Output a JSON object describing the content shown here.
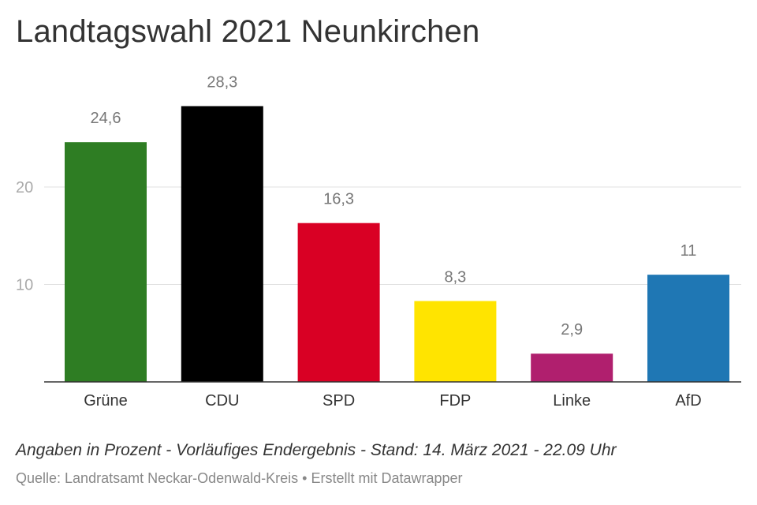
{
  "title": "Landtagswahl 2021 Neunkirchen",
  "note": "Angaben in Prozent - Vorläufiges Endergebnis - Stand: 14. März 2021 - 22.09 Uhr",
  "source": "Quelle: Landratsamt Neckar-Odenwald-Kreis • Erstellt mit Datawrapper",
  "chart_data": {
    "type": "bar",
    "title": "Landtagswahl 2021 Neunkirchen",
    "categories": [
      "Grüne",
      "CDU",
      "SPD",
      "FDP",
      "Linke",
      "AfD"
    ],
    "values": [
      24.6,
      28.3,
      16.3,
      8.3,
      2.9,
      11
    ],
    "value_labels": [
      "24,6",
      "28,3",
      "16,3",
      "8,3",
      "2,9",
      "11"
    ],
    "colors": [
      "#2e7d23",
      "#000000",
      "#d90024",
      "#ffe400",
      "#b01f6e",
      "#1f77b4"
    ],
    "yticks": [
      10,
      20
    ],
    "ytick_labels": [
      "10",
      "20"
    ],
    "ylim": [
      0,
      30
    ],
    "grid": true,
    "xlabel": "",
    "ylabel": ""
  }
}
